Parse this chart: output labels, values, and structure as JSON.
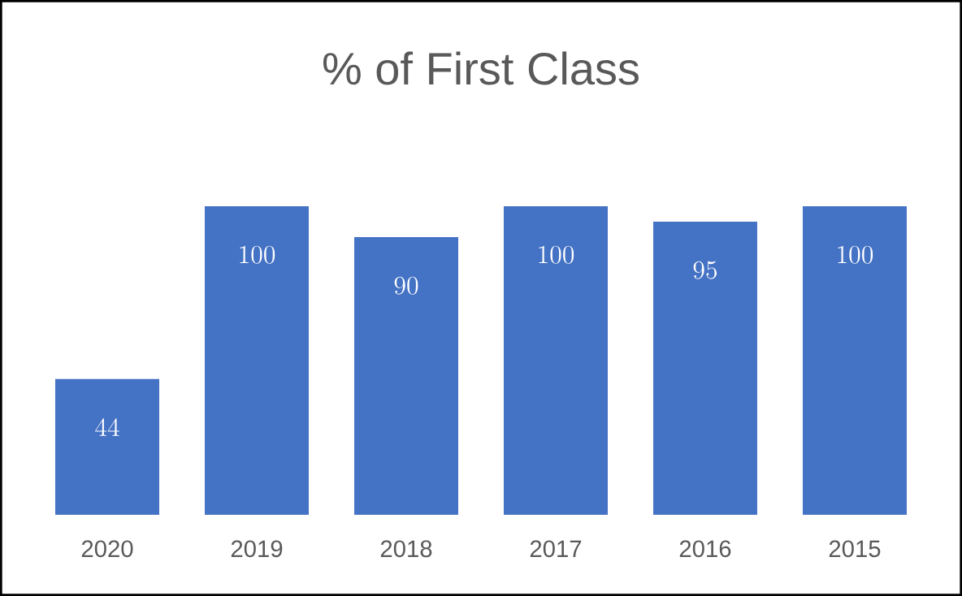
{
  "chart_data": {
    "type": "bar",
    "title": "% of First Class",
    "categories": [
      "2020",
      "2019",
      "2018",
      "2017",
      "2016",
      "2015"
    ],
    "values": [
      44,
      100,
      90,
      100,
      95,
      100
    ],
    "color": "#4472c4",
    "data_labels": true
  }
}
